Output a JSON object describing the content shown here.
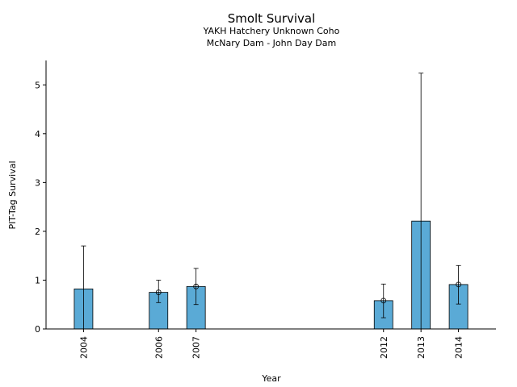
{
  "chart_data": {
    "type": "bar",
    "title": "Smolt Survival",
    "subtitle_lines": [
      "YAKH Hatchery Unknown Coho",
      "McNary Dam - John Day Dam"
    ],
    "xlabel": "Year",
    "ylabel": "PIT-Tag Survival",
    "categories": [
      "2004",
      "2006",
      "2007",
      "2012",
      "2013",
      "2014"
    ],
    "x": [
      2004,
      2006,
      2007,
      2012,
      2013,
      2014
    ],
    "values": [
      0.82,
      0.75,
      0.87,
      0.58,
      2.21,
      0.91
    ],
    "error_low": [
      0.0,
      0.54,
      0.5,
      0.23,
      0.0,
      0.51
    ],
    "error_high": [
      1.7,
      1.0,
      1.24,
      0.92,
      5.24,
      1.3
    ],
    "point_markers": [
      false,
      true,
      true,
      true,
      false,
      true
    ],
    "ylim": [
      0,
      5.5
    ],
    "yticks": [
      0,
      1,
      2,
      3,
      4,
      5
    ],
    "xlim": [
      2003.0,
      2015.0
    ],
    "bar_color": "#5aaad6",
    "grid": false
  }
}
